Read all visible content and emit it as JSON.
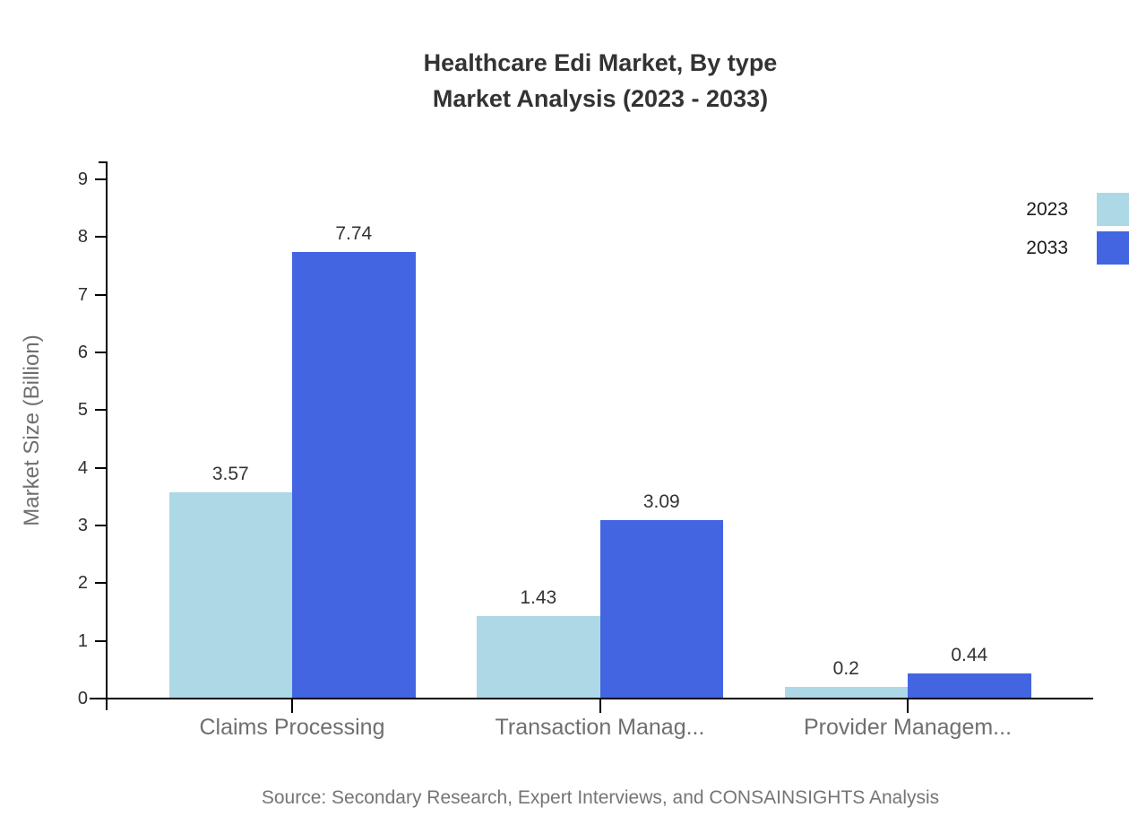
{
  "chart_data": {
    "type": "bar",
    "title": "Healthcare Edi Market, By type",
    "subtitle": "Market Analysis (2023 - 2033)",
    "ylabel": "Market Size (Billion)",
    "xlabel": "",
    "categories": [
      "Claims Processing",
      "Transaction Manag...",
      "Provider Managem..."
    ],
    "series": [
      {
        "name": "2023",
        "color": "#ADD8E6",
        "values": [
          3.57,
          1.43,
          0.2
        ]
      },
      {
        "name": "2033",
        "color": "#4365E2",
        "values": [
          7.74,
          3.09,
          0.44
        ]
      }
    ],
    "value_labels": {
      "2023": [
        "3.57",
        "1.43",
        "0.2"
      ],
      "2033": [
        "7.74",
        "3.09",
        "0.44"
      ]
    },
    "ylim": [
      0,
      9
    ],
    "yticks": [
      0,
      1,
      2,
      3,
      4,
      5,
      6,
      7,
      8,
      9
    ],
    "grid": false,
    "legend_position": "top-right",
    "source": "Source: Secondary Research, Expert Interviews, and CONSAINSIGHTS Analysis"
  },
  "colors": {
    "axis": "#000000",
    "title_text": "#333333",
    "muted_text": "#6f6f6f",
    "tick_text": "#2e2e2e",
    "series_2023": "#ADD8E6",
    "series_2033": "#4365E2"
  }
}
